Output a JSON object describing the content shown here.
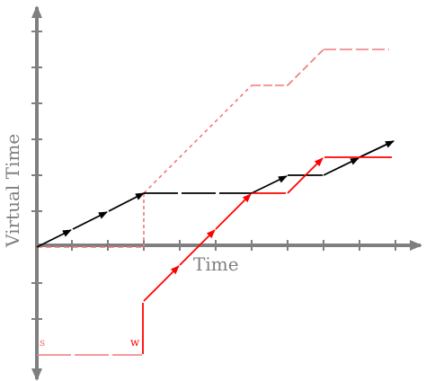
{
  "labels": {
    "x_axis": "Time",
    "y_axis": "Virtual Time",
    "s_marker": "s",
    "w_marker": "w"
  },
  "colors": {
    "axis": "#7f7f7f",
    "black_path": "#000000",
    "red_path": "#ff0000",
    "pink_path": "#f07878"
  }
}
